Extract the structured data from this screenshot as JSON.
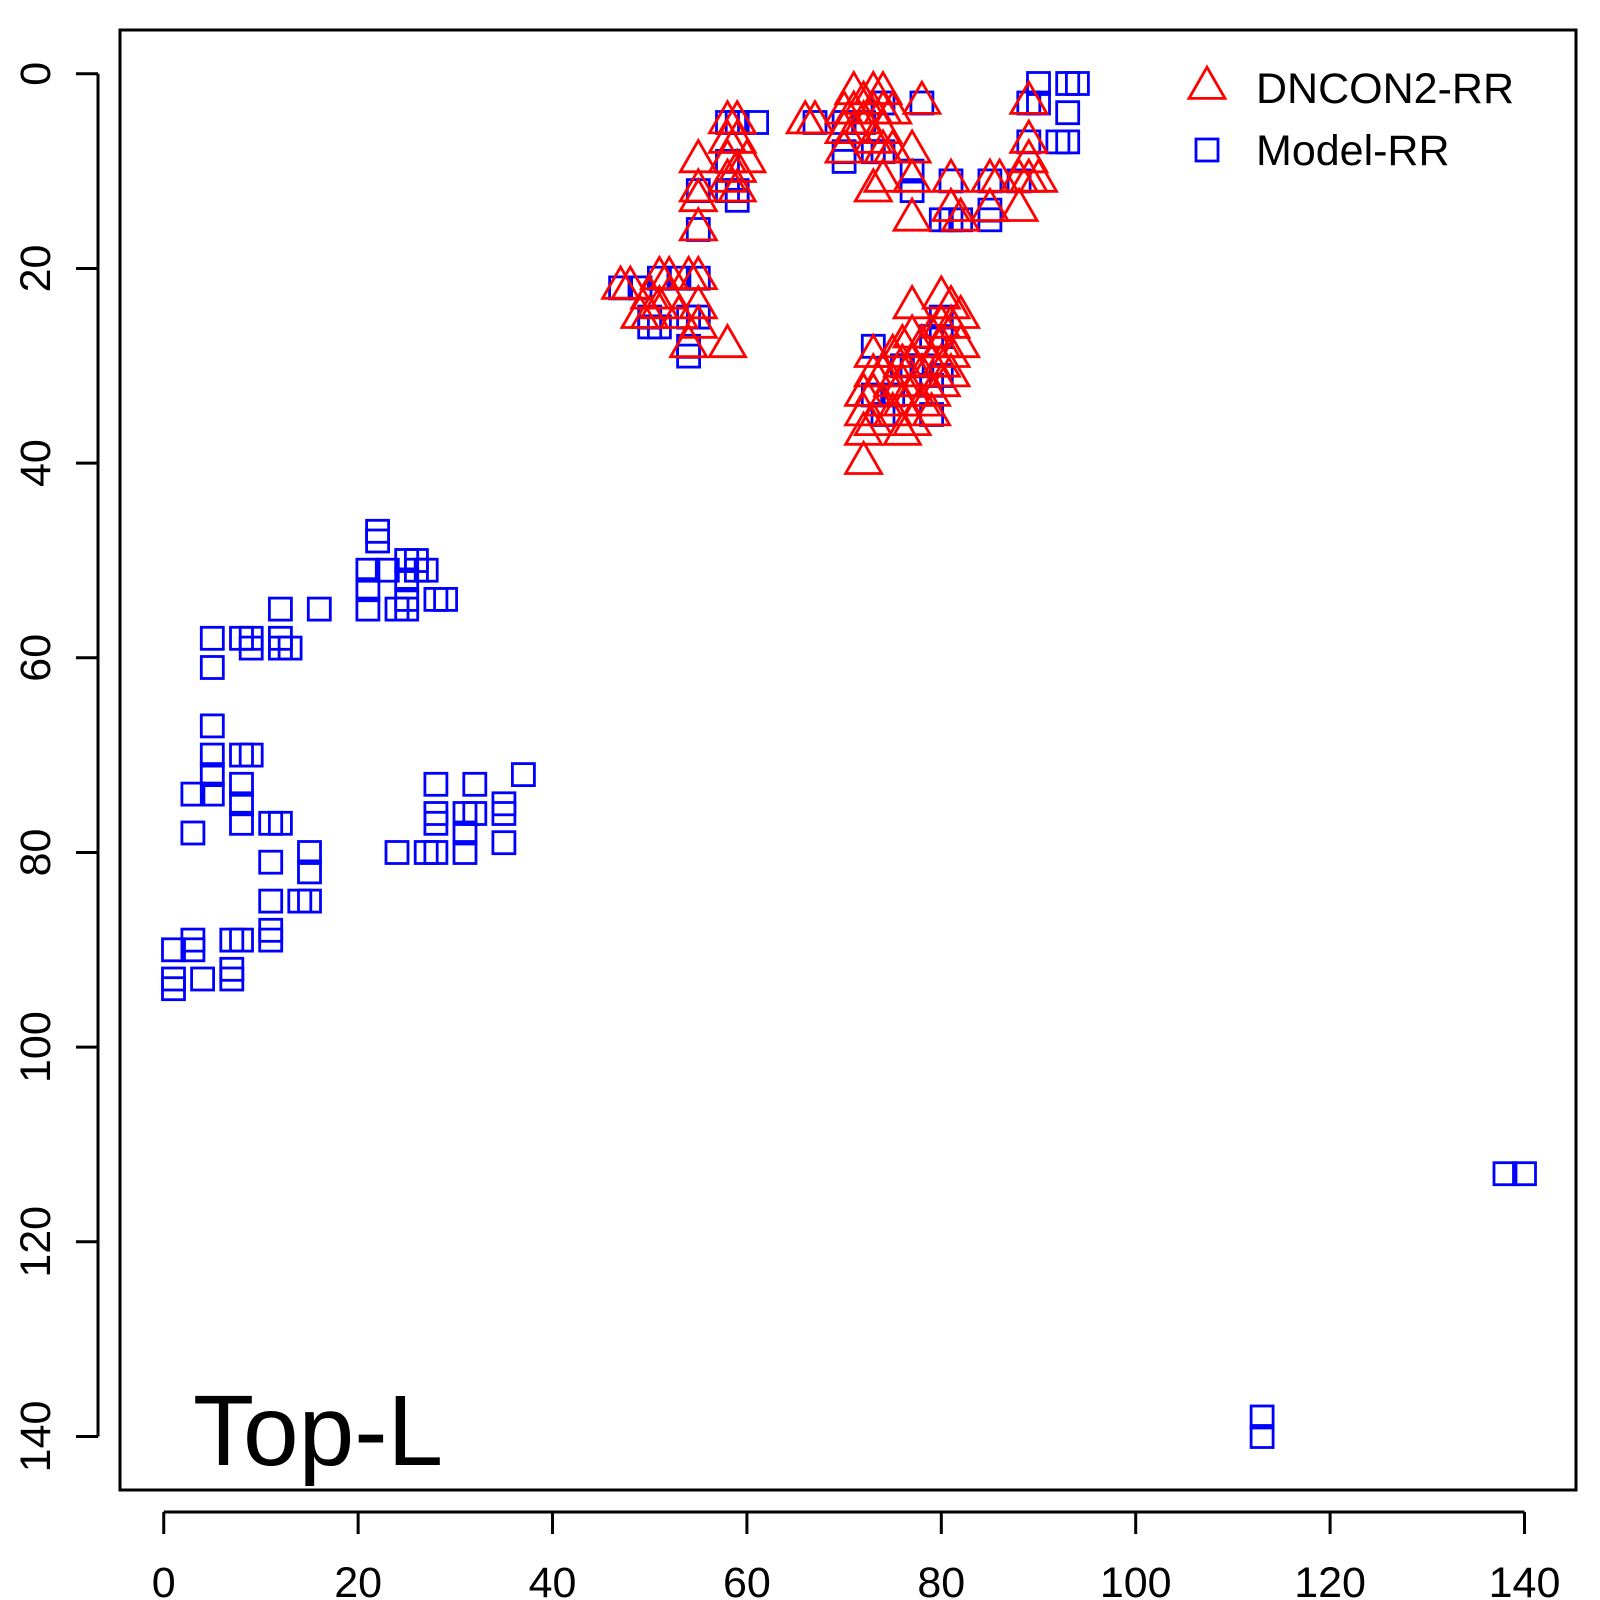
{
  "chart_data": {
    "type": "scatter",
    "annotation": "Top-L",
    "xlim": [
      -4.5,
      145.3
    ],
    "ylim": [
      -4.5,
      145.5
    ],
    "y_inverted": true,
    "grid": false,
    "legend_position": "top-right",
    "x_ticks": [
      0,
      20,
      40,
      60,
      80,
      100,
      120,
      140
    ],
    "y_ticks": [
      0,
      20,
      40,
      60,
      80,
      100,
      120,
      140
    ],
    "x_tick_labels": [
      "0",
      "20",
      "40",
      "60",
      "80",
      "100",
      "120",
      "140"
    ],
    "y_tick_labels": [
      "0",
      "20",
      "40",
      "60",
      "80",
      "100",
      "120",
      "140"
    ],
    "series": [
      {
        "name": "DNCON2-RR",
        "marker": "triangle",
        "color": "#ff0000",
        "points": [
          [
            47,
            22
          ],
          [
            48,
            22
          ],
          [
            49,
            25
          ],
          [
            50,
            23
          ],
          [
            50,
            25
          ],
          [
            51,
            21
          ],
          [
            51,
            24
          ],
          [
            52,
            21
          ],
          [
            52,
            23
          ],
          [
            53,
            25
          ],
          [
            54,
            28
          ],
          [
            54,
            21
          ],
          [
            55,
            21
          ],
          [
            55,
            24
          ],
          [
            55,
            26
          ],
          [
            58,
            28
          ],
          [
            55,
            9
          ],
          [
            55,
            12
          ],
          [
            55,
            13
          ],
          [
            55,
            16
          ],
          [
            58,
            5
          ],
          [
            58,
            7
          ],
          [
            58,
            9
          ],
          [
            58,
            11
          ],
          [
            59,
            5
          ],
          [
            59,
            7
          ],
          [
            59,
            10
          ],
          [
            59,
            12
          ],
          [
            60,
            9
          ],
          [
            66,
            5
          ],
          [
            67,
            5
          ],
          [
            70,
            4
          ],
          [
            70,
            6
          ],
          [
            70,
            8
          ],
          [
            71,
            2
          ],
          [
            71,
            4
          ],
          [
            71,
            6
          ],
          [
            72,
            3
          ],
          [
            72,
            5
          ],
          [
            73,
            2
          ],
          [
            73,
            4
          ],
          [
            73,
            7
          ],
          [
            73,
            12
          ],
          [
            74,
            2
          ],
          [
            74,
            4
          ],
          [
            74,
            6
          ],
          [
            74,
            8
          ],
          [
            74,
            11
          ],
          [
            75,
            4
          ],
          [
            75,
            8
          ],
          [
            77,
            8
          ],
          [
            77,
            11
          ],
          [
            77,
            15
          ],
          [
            78,
            3
          ],
          [
            81,
            11
          ],
          [
            81,
            14
          ],
          [
            82,
            15
          ],
          [
            85,
            11
          ],
          [
            85,
            14
          ],
          [
            86,
            11
          ],
          [
            88,
            11
          ],
          [
            88,
            14
          ],
          [
            89,
            3
          ],
          [
            89,
            7
          ],
          [
            89,
            9
          ],
          [
            89,
            11
          ],
          [
            90,
            11
          ],
          [
            72,
            33
          ],
          [
            72,
            35
          ],
          [
            72,
            37
          ],
          [
            72,
            40
          ],
          [
            73,
            29
          ],
          [
            73,
            31
          ],
          [
            73,
            33
          ],
          [
            73,
            36
          ],
          [
            74,
            31
          ],
          [
            74,
            34
          ],
          [
            75,
            29
          ],
          [
            75,
            32
          ],
          [
            75,
            35
          ],
          [
            76,
            28
          ],
          [
            76,
            30
          ],
          [
            76,
            32
          ],
          [
            76,
            34
          ],
          [
            76,
            37
          ],
          [
            77,
            24
          ],
          [
            77,
            27
          ],
          [
            77,
            30
          ],
          [
            77,
            33
          ],
          [
            77,
            36
          ],
          [
            78,
            28
          ],
          [
            78,
            31
          ],
          [
            78,
            34
          ],
          [
            79,
            27
          ],
          [
            79,
            30
          ],
          [
            79,
            33
          ],
          [
            79,
            35
          ],
          [
            80,
            23
          ],
          [
            80,
            26
          ],
          [
            80,
            28
          ],
          [
            80,
            30
          ],
          [
            80,
            32
          ],
          [
            81,
            24
          ],
          [
            81,
            26
          ],
          [
            81,
            29
          ],
          [
            81,
            31
          ],
          [
            82,
            25
          ],
          [
            82,
            28
          ]
        ]
      },
      {
        "name": "Model-RR",
        "marker": "square",
        "color": "#0000ff",
        "points": [
          [
            1,
            90
          ],
          [
            1,
            93
          ],
          [
            1,
            94
          ],
          [
            3,
            74
          ],
          [
            3,
            78
          ],
          [
            3,
            89
          ],
          [
            3,
            90
          ],
          [
            4,
            93
          ],
          [
            5,
            58
          ],
          [
            5,
            61
          ],
          [
            5,
            67
          ],
          [
            5,
            70
          ],
          [
            5,
            72
          ],
          [
            5,
            74
          ],
          [
            7,
            89
          ],
          [
            7,
            92
          ],
          [
            7,
            93
          ],
          [
            8,
            58
          ],
          [
            8,
            70
          ],
          [
            8,
            73
          ],
          [
            8,
            75
          ],
          [
            8,
            77
          ],
          [
            8,
            89
          ],
          [
            9,
            58
          ],
          [
            9,
            59
          ],
          [
            9,
            70
          ],
          [
            11,
            77
          ],
          [
            11,
            81
          ],
          [
            11,
            85
          ],
          [
            11,
            88
          ],
          [
            11,
            89
          ],
          [
            12,
            55
          ],
          [
            12,
            58
          ],
          [
            12,
            59
          ],
          [
            12,
            77
          ],
          [
            13,
            59
          ],
          [
            14,
            85
          ],
          [
            15,
            80
          ],
          [
            15,
            82
          ],
          [
            15,
            85
          ],
          [
            16,
            55
          ],
          [
            21,
            51
          ],
          [
            21,
            53
          ],
          [
            21,
            55
          ],
          [
            22,
            47
          ],
          [
            22,
            48
          ],
          [
            23,
            51
          ],
          [
            24,
            55
          ],
          [
            24,
            80
          ],
          [
            25,
            50
          ],
          [
            25,
            52
          ],
          [
            25,
            54
          ],
          [
            25,
            55
          ],
          [
            26,
            50
          ],
          [
            26,
            51
          ],
          [
            27,
            51
          ],
          [
            27,
            80
          ],
          [
            28,
            54
          ],
          [
            28,
            73
          ],
          [
            28,
            76
          ],
          [
            28,
            77
          ],
          [
            28,
            80
          ],
          [
            29,
            54
          ],
          [
            31,
            76
          ],
          [
            31,
            78
          ],
          [
            31,
            80
          ],
          [
            32,
            73
          ],
          [
            32,
            76
          ],
          [
            35,
            75
          ],
          [
            35,
            76
          ],
          [
            35,
            79
          ],
          [
            37,
            72
          ],
          [
            47,
            22
          ],
          [
            49,
            22
          ],
          [
            50,
            25
          ],
          [
            50,
            26
          ],
          [
            51,
            21
          ],
          [
            51,
            26
          ],
          [
            53,
            21
          ],
          [
            54,
            25
          ],
          [
            54,
            28
          ],
          [
            54,
            29
          ],
          [
            55,
            12
          ],
          [
            55,
            16
          ],
          [
            55,
            21
          ],
          [
            55,
            25
          ],
          [
            58,
            5
          ],
          [
            58,
            9
          ],
          [
            58,
            12
          ],
          [
            59,
            5
          ],
          [
            59,
            12
          ],
          [
            59,
            13
          ],
          [
            61,
            5
          ],
          [
            67,
            5
          ],
          [
            70,
            5
          ],
          [
            70,
            8
          ],
          [
            70,
            9
          ],
          [
            72,
            5
          ],
          [
            73,
            8
          ],
          [
            74,
            3
          ],
          [
            74,
            8
          ],
          [
            77,
            10
          ],
          [
            77,
            12
          ],
          [
            78,
            3
          ],
          [
            80,
            15
          ],
          [
            81,
            11
          ],
          [
            81,
            15
          ],
          [
            82,
            15
          ],
          [
            85,
            11
          ],
          [
            85,
            14
          ],
          [
            85,
            15
          ],
          [
            88,
            11
          ],
          [
            89,
            3
          ],
          [
            89,
            7
          ],
          [
            90,
            1
          ],
          [
            90,
            3
          ],
          [
            92,
            7
          ],
          [
            93,
            1
          ],
          [
            93,
            4
          ],
          [
            93,
            7
          ],
          [
            94,
            1
          ],
          [
            73,
            28
          ],
          [
            73,
            33
          ],
          [
            74,
            35
          ],
          [
            75,
            33
          ],
          [
            76,
            30
          ],
          [
            77,
            30
          ],
          [
            78,
            30
          ],
          [
            79,
            27
          ],
          [
            79,
            32
          ],
          [
            79,
            35
          ],
          [
            80,
            25
          ],
          [
            80,
            27
          ],
          [
            80,
            31
          ],
          [
            113,
            138
          ],
          [
            113,
            140
          ],
          [
            138,
            113
          ],
          [
            140,
            113
          ]
        ]
      }
    ]
  }
}
